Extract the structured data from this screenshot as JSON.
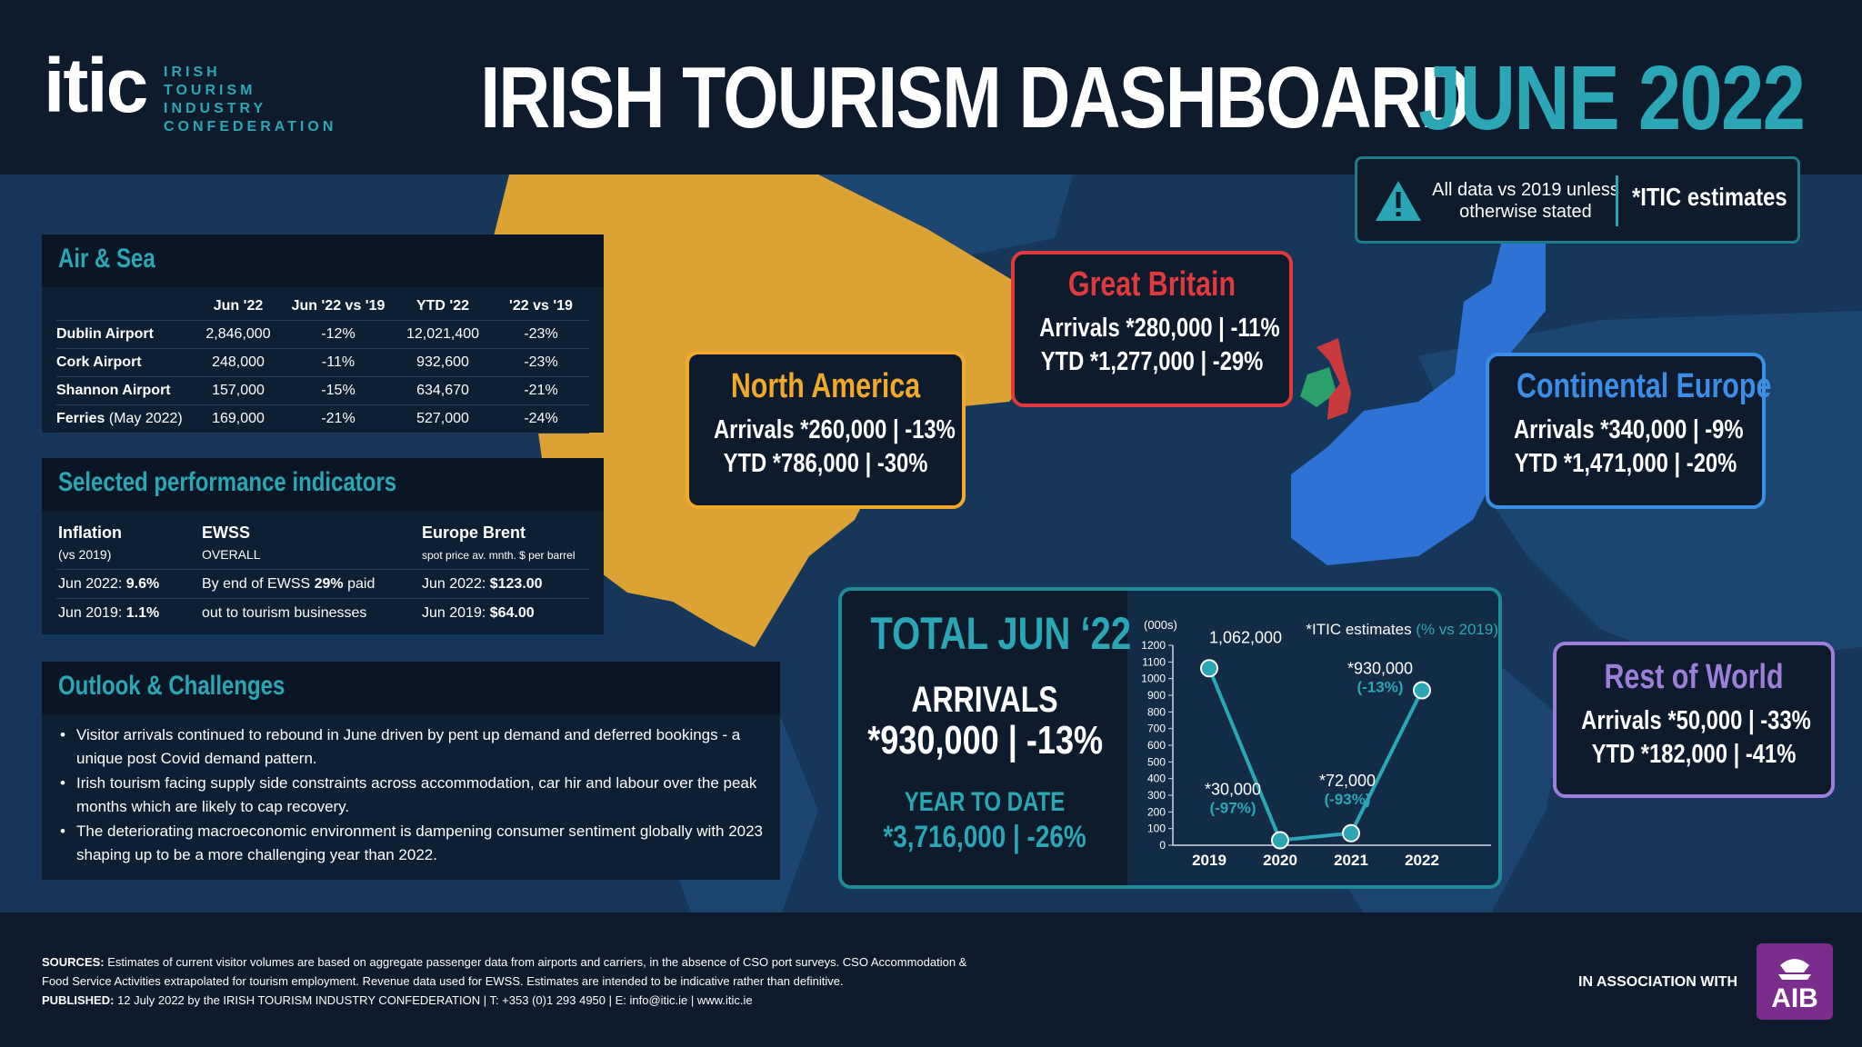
{
  "header": {
    "logo_main": "itic",
    "logo_sub": [
      "IRISH",
      "TOURISM",
      "INDUSTRY",
      "CONFEDERATION"
    ],
    "title": "IRISH TOURISM DASHBOARD",
    "month": "JUNE 2022"
  },
  "notice": {
    "text": "All data vs 2019 unless otherwise stated",
    "estimates": "*ITIC estimates",
    "icon": "warning-icon"
  },
  "air_sea": {
    "title": "Air & Sea",
    "columns": [
      "",
      "Jun '22",
      "Jun '22 vs '19",
      "YTD '22",
      "'22 vs '19"
    ],
    "rows": [
      {
        "name": "Dublin Airport",
        "note": "",
        "jun": "2,846,000",
        "jun_vs": "-12%",
        "ytd": "12,021,400",
        "ytd_vs": "-23%"
      },
      {
        "name": "Cork Airport",
        "note": "",
        "jun": "248,000",
        "jun_vs": "-11%",
        "ytd": "932,600",
        "ytd_vs": "-23%"
      },
      {
        "name": "Shannon Airport",
        "note": "",
        "jun": "157,000",
        "jun_vs": "-15%",
        "ytd": "634,670",
        "ytd_vs": "-21%"
      },
      {
        "name": "Ferries",
        "note": "(May 2022)",
        "jun": "169,000",
        "jun_vs": "-21%",
        "ytd": "527,000",
        "ytd_vs": "-24%"
      }
    ]
  },
  "indicators": {
    "title": "Selected performance indicators",
    "col1": {
      "head": "Inflation",
      "sub": "(vs 2019)",
      "r1_label": "Jun 2022: ",
      "r1_val": "9.6%",
      "r2_label": "Jun 2019: ",
      "r2_val": "1.1%"
    },
    "col2": {
      "head": "EWSS",
      "sub": "OVERALL",
      "r1_a": "By end of EWSS ",
      "r1_b": "29%",
      "r1_c": " paid",
      "r2": "out to tourism businesses"
    },
    "col3": {
      "head": "Europe Brent",
      "sub": "spot price av. mnth. $ per barrel",
      "r1_label": "Jun 2022: ",
      "r1_val": "$123.00",
      "r2_label": "Jun 2019: ",
      "r2_val": "$64.00"
    }
  },
  "outlook": {
    "title": "Outlook & Challenges",
    "bullets": [
      "Visitor arrivals continued to rebound in June driven by pent up demand and deferred bookings - a unique post Covid demand pattern.",
      "Irish tourism facing supply side constraints across accommodation, car hir and labour over the peak months which are likely to cap recovery.",
      "The deteriorating macroeconomic environment is dampening consumer sentiment globally with 2023 shaping up to be a more challenging year than 2022."
    ]
  },
  "regions": {
    "north_america": {
      "name": "North America",
      "arrivals": "Arrivals *260,000 | -13%",
      "ytd": "YTD *786,000 | -30%",
      "color": "#f0a92c"
    },
    "great_britain": {
      "name": "Great Britain",
      "arrivals": "Arrivals *280,000 | -11%",
      "ytd": "YTD *1,277,000 | -29%",
      "color": "#e0393e"
    },
    "continental_europe": {
      "name": "Continental Europe",
      "arrivals": "Arrivals *340,000 | -9%",
      "ytd": "YTD *1,471,000 | -20%",
      "color": "#3a8ee6"
    },
    "rest_of_world": {
      "name": "Rest of World",
      "arrivals": "Arrivals *50,000 | -33%",
      "ytd": "YTD *182,000 | -41%",
      "color": "#9b7fd8"
    }
  },
  "total": {
    "title": "TOTAL JUN ‘22",
    "arrivals_label": "ARRIVALS",
    "arrivals_value": "*930,000 | -13%",
    "ytd_label": "YEAR TO DATE",
    "ytd_value": "*3,716,000 | -26%"
  },
  "chart_data": {
    "type": "line",
    "unit_label": "(000s)",
    "note_prefix": "*ITIC estimates ",
    "note_suffix": "(% vs 2019)",
    "categories": [
      "2019",
      "2020",
      "2021",
      "2022"
    ],
    "values": [
      1062,
      30,
      72,
      930
    ],
    "labels": [
      "1,062,000",
      "*30,000",
      "*72,000",
      "*930,000"
    ],
    "pct_labels": [
      "",
      "(-97%)",
      "(-93%)",
      "(-13%)"
    ],
    "ylim": [
      0,
      1200
    ],
    "yticks": [
      0,
      100,
      200,
      300,
      400,
      500,
      600,
      700,
      800,
      900,
      1000,
      1100,
      1200
    ],
    "line_color": "#2aa6b5"
  },
  "footer": {
    "sources_label": "SOURCES:",
    "sources_text": " Estimates of current visitor volumes are based on aggregate passenger data from airports and carriers, in the absence of CSO port surveys. CSO Accommodation & Food Service Activities extrapolated for tourism employment. Revenue data used for EWSS. Estimates are intended to be indicative rather than definitive.",
    "published_label": "PUBLISHED:",
    "published_text": " 12 July 2022 by the IRISH TOURISM INDUSTRY CONFEDERATION  |  T: +353 (0)1 293 4950  |  E: info@itic.ie  |  www.itic.ie",
    "association": "IN ASSOCIATION WITH",
    "aib": "AIB"
  }
}
